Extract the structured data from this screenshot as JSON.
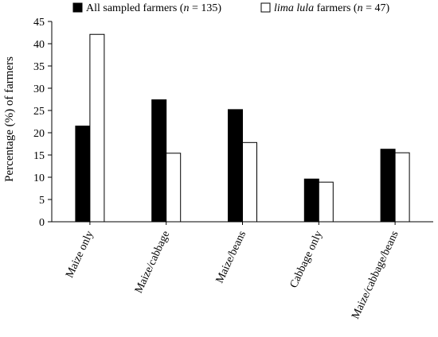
{
  "chart_data": {
    "type": "bar",
    "title": "",
    "xlabel": "",
    "ylabel": "Percentage (%) of farmers",
    "ylim": [
      0,
      45
    ],
    "yticks": [
      0,
      5,
      10,
      15,
      20,
      25,
      30,
      35,
      40,
      45
    ],
    "grid": false,
    "legend": "top",
    "categories": [
      "Maize only",
      "Maize/cabbage",
      "Maize/beans",
      "Cabbage only",
      "Maize/cabbage/beans"
    ],
    "series": [
      {
        "name": "All sampled farmers (n = 135)",
        "name_parts": {
          "prefix": "All sampled farmers (",
          "italic1": "n",
          "suffix": " = 135)"
        },
        "color": "#000000",
        "values": [
          21.5,
          27.4,
          25.2,
          9.6,
          16.3
        ]
      },
      {
        "name": "lima lula farmers (n = 47)",
        "name_parts": {
          "italic0": "lima lula",
          "prefix": " farmers (",
          "italic1": "n",
          "suffix": " = 47)"
        },
        "color": "#ffffff",
        "values": [
          42.1,
          15.4,
          17.8,
          8.9,
          15.5
        ]
      }
    ]
  }
}
